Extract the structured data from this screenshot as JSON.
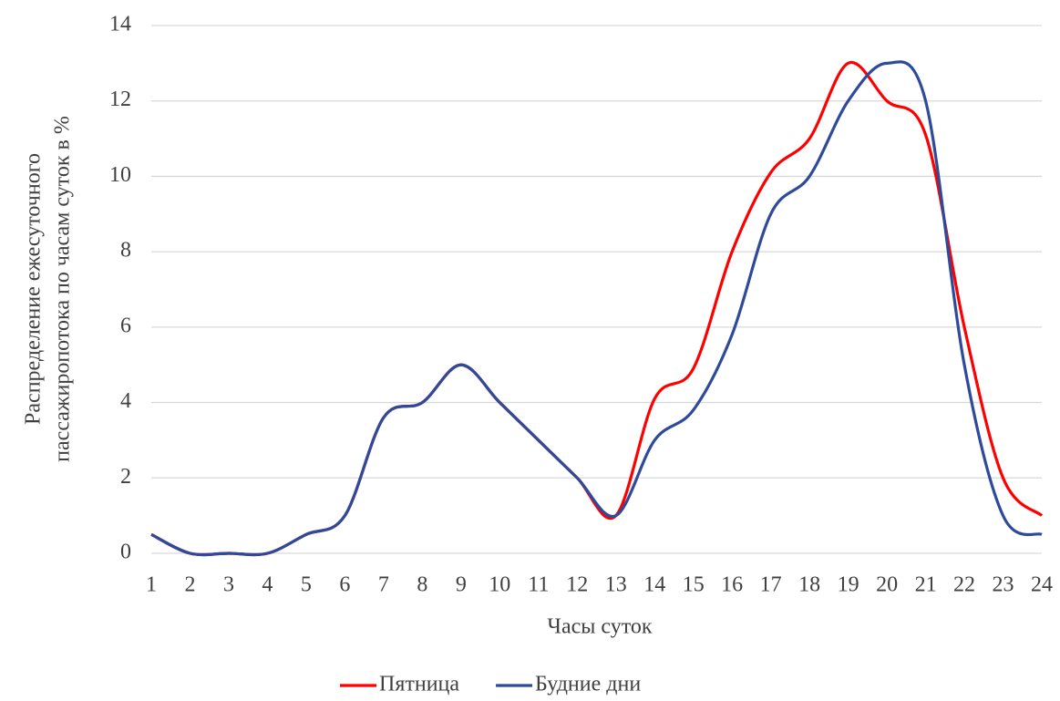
{
  "chart_data": {
    "type": "line",
    "x_label": "Часы суток",
    "y_label": [
      "Распределение ежесуточного",
      "пассажиропотока по часам суток в %"
    ],
    "x": [
      1,
      2,
      3,
      4,
      5,
      6,
      7,
      8,
      9,
      10,
      11,
      12,
      13,
      14,
      15,
      16,
      17,
      18,
      19,
      20,
      21,
      22,
      23,
      24
    ],
    "series": [
      {
        "name": "Пятница",
        "color": "#ff0000",
        "values": [
          0.5,
          0,
          0,
          0,
          0.5,
          1,
          3.6,
          4,
          5,
          4,
          3,
          2,
          1,
          4.1,
          4.9,
          8,
          10.1,
          11,
          13,
          12,
          11.1,
          6,
          2,
          1
        ]
      },
      {
        "name": "Будние дни",
        "color": "#2e4a9a",
        "values": [
          0.5,
          0,
          0,
          0,
          0.5,
          1,
          3.6,
          4,
          5,
          4,
          3,
          2,
          1,
          3,
          3.8,
          5.8,
          9,
          10,
          12,
          13,
          12,
          5,
          1,
          0.5
        ]
      }
    ],
    "xlim": [
      1,
      24
    ],
    "xticks": [
      1,
      2,
      3,
      4,
      5,
      6,
      7,
      8,
      9,
      10,
      11,
      12,
      13,
      14,
      15,
      16,
      17,
      18,
      19,
      20,
      21,
      22,
      23,
      24
    ],
    "ylim": [
      0,
      14
    ],
    "yticks": [
      0,
      2,
      4,
      6,
      8,
      10,
      12,
      14
    ],
    "grid": true,
    "legend": "bottom"
  }
}
